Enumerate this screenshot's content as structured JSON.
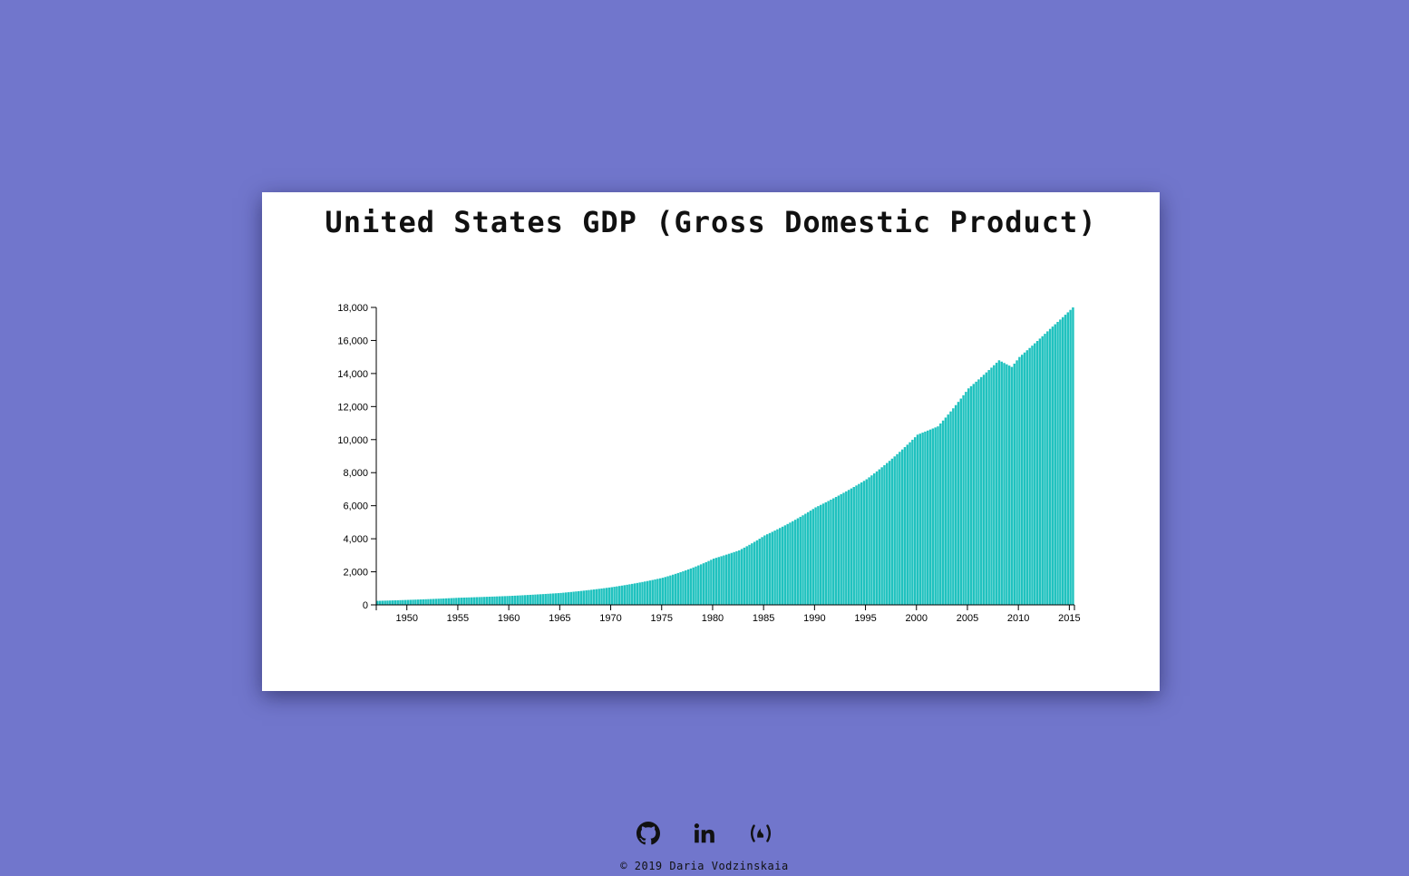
{
  "chart_data": {
    "type": "bar",
    "title": "United States GDP (Gross Domestic Product)",
    "xlabel": "",
    "ylabel": "",
    "xlim": [
      1947,
      2015.5
    ],
    "ylim": [
      0,
      18000
    ],
    "x_ticks": [
      "1950",
      "1955",
      "1960",
      "1965",
      "1970",
      "1975",
      "1980",
      "1985",
      "1990",
      "1995",
      "2000",
      "2005",
      "2010",
      "2015"
    ],
    "y_ticks": [
      "0",
      "2,000",
      "4,000",
      "6,000",
      "8,000",
      "10,000",
      "12,000",
      "14,000",
      "16,000",
      "18,000"
    ],
    "frequency": "quarterly",
    "color": "#20c2bf",
    "anchor_points": {
      "x": [
        1947,
        1950,
        1955,
        1960,
        1965,
        1970,
        1975,
        1980,
        1982.5,
        1985,
        1990,
        1995,
        2000,
        2002,
        2005,
        2008,
        2009.25,
        2010,
        2013,
        2015.25
      ],
      "y": [
        243,
        300,
        430,
        540,
        720,
        1070,
        1640,
        2800,
        3300,
        4200,
        5900,
        7600,
        10300,
        10800,
        13100,
        14800,
        14400,
        15000,
        16700,
        18000
      ]
    }
  },
  "footer": {
    "icons": [
      "github-icon",
      "linkedin-icon",
      "freecodecamp-icon"
    ],
    "copyright": "© 2019 Daria Vodzinskaia"
  }
}
